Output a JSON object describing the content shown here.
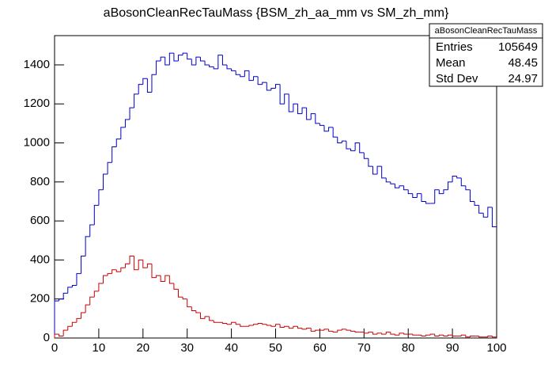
{
  "chart_data": {
    "type": "histogram",
    "title": "aBosonCleanRecTauMass {BSM_zh_aa_mm vs SM_zh_mm}",
    "bins": [
      0,
      1,
      2,
      3,
      4,
      5,
      6,
      7,
      8,
      9,
      10,
      11,
      12,
      13,
      14,
      15,
      16,
      17,
      18,
      19,
      20,
      21,
      22,
      23,
      24,
      25,
      26,
      27,
      28,
      29,
      30,
      31,
      32,
      33,
      34,
      35,
      36,
      37,
      38,
      39,
      40,
      41,
      42,
      43,
      44,
      45,
      46,
      47,
      48,
      49,
      50,
      51,
      52,
      53,
      54,
      55,
      56,
      57,
      58,
      59,
      60,
      61,
      62,
      63,
      64,
      65,
      66,
      67,
      68,
      69,
      70,
      71,
      72,
      73,
      74,
      75,
      76,
      77,
      78,
      79,
      80,
      81,
      82,
      83,
      84,
      85,
      86,
      87,
      88,
      89,
      90,
      91,
      92,
      93,
      94,
      95,
      96,
      97,
      98,
      99,
      100
    ],
    "series": [
      {
        "color": "#0000cc",
        "values": [
          190,
          200,
          230,
          260,
          270,
          330,
          420,
          520,
          580,
          680,
          760,
          840,
          900,
          980,
          1020,
          1080,
          1120,
          1180,
          1250,
          1300,
          1330,
          1260,
          1350,
          1420,
          1440,
          1400,
          1460,
          1420,
          1450,
          1460,
          1430,
          1400,
          1440,
          1420,
          1400,
          1390,
          1380,
          1450,
          1400,
          1380,
          1370,
          1350,
          1340,
          1370,
          1320,
          1340,
          1300,
          1310,
          1270,
          1280,
          1300,
          1200,
          1250,
          1160,
          1200,
          1150,
          1180,
          1120,
          1150,
          1100,
          1090,
          1060,
          1080,
          1030,
          1000,
          1010,
          970,
          960,
          1000,
          950,
          920,
          880,
          840,
          880,
          820,
          800,
          790,
          770,
          780,
          760,
          740,
          720,
          740,
          700,
          690,
          690,
          760,
          740,
          760,
          800,
          830,
          820,
          780,
          760,
          700,
          680,
          640,
          620,
          670,
          570
        ]
      },
      {
        "color": "#cc0000",
        "values": [
          20,
          10,
          40,
          60,
          80,
          100,
          130,
          170,
          210,
          240,
          280,
          320,
          330,
          350,
          340,
          360,
          380,
          420,
          350,
          400,
          360,
          380,
          310,
          320,
          290,
          320,
          280,
          250,
          210,
          200,
          160,
          140,
          130,
          100,
          110,
          90,
          80,
          80,
          75,
          70,
          80,
          70,
          60,
          60,
          65,
          70,
          75,
          70,
          65,
          60,
          70,
          55,
          60,
          50,
          60,
          50,
          45,
          50,
          35,
          40,
          40,
          45,
          35,
          30,
          40,
          45,
          40,
          35,
          30,
          30,
          25,
          30,
          20,
          25,
          20,
          30,
          20,
          15,
          25,
          20,
          20,
          15,
          15,
          10,
          15,
          20,
          10,
          15,
          10,
          15,
          10,
          10,
          15,
          5,
          10,
          10,
          5,
          5,
          10,
          5
        ]
      }
    ],
    "xlim": [
      0,
      100
    ],
    "ylim": [
      0,
      1550
    ],
    "xticks": [
      0,
      10,
      20,
      30,
      40,
      50,
      60,
      70,
      80,
      90,
      100
    ],
    "yticks": [
      0,
      200,
      400,
      600,
      800,
      1000,
      1200,
      1400
    ],
    "stats": {
      "title": "aBosonCleanRecTauMass",
      "rows": [
        {
          "label": "Entries",
          "value": 105649
        },
        {
          "label": "Mean",
          "value": 48.45
        },
        {
          "label": "Std Dev",
          "value": 24.97
        }
      ]
    }
  }
}
